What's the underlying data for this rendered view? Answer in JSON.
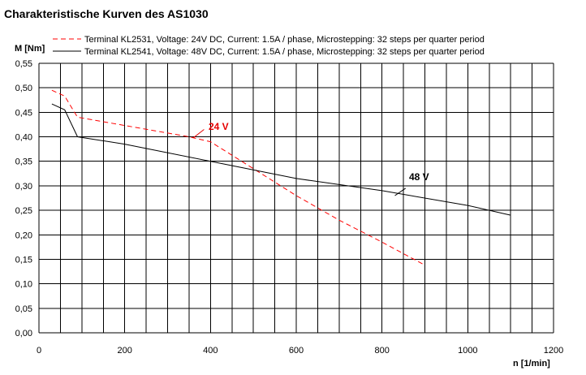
{
  "chart_data": {
    "type": "line",
    "title": "Charakteristische Kurven des AS1030",
    "ylabel": "M [Nm]",
    "xlabel": "n [1/min]",
    "xlim": [
      0,
      1200
    ],
    "ylim": [
      0,
      0.55
    ],
    "x_ticks": [
      "0",
      "200",
      "400",
      "600",
      "800",
      "1000",
      "1200"
    ],
    "y_ticks": [
      "0,00",
      "0,05",
      "0,10",
      "0,15",
      "0,20",
      "0,25",
      "0,30",
      "0,35",
      "0,40",
      "0,45",
      "0,50",
      "0,55"
    ],
    "grid": true,
    "legend_position": "top",
    "series": [
      {
        "name": "Terminal KL2531, Voltage: 24V DC, Current: 1.5A / phase, Microstepping: 32 steps per quarter period",
        "color": "#ff0000",
        "style": "dashed",
        "annotation": "24 V",
        "x": [
          30,
          60,
          90,
          350,
          400,
          500,
          600,
          700,
          800,
          900
        ],
        "y": [
          0.495,
          0.483,
          0.44,
          0.4,
          0.39,
          0.335,
          0.28,
          0.23,
          0.185,
          0.138
        ]
      },
      {
        "name": "Terminal KL2541, Voltage: 48V DC, Current: 1.5A / phase, Microstepping: 32 steps per quarter period",
        "color": "#000000",
        "style": "solid",
        "annotation": "48 V",
        "x": [
          30,
          60,
          90,
          200,
          400,
          600,
          800,
          1000,
          1100
        ],
        "y": [
          0.467,
          0.455,
          0.4,
          0.385,
          0.35,
          0.315,
          0.29,
          0.26,
          0.24
        ]
      }
    ]
  }
}
